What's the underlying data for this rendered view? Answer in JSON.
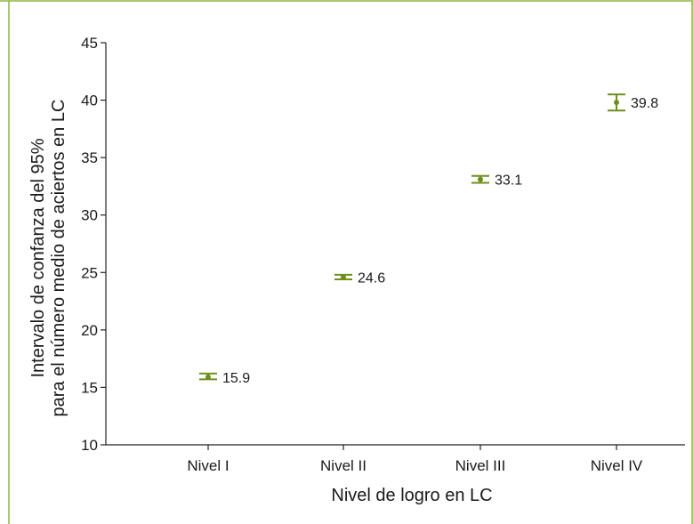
{
  "colors": {
    "frame": "#8db53c",
    "series": "#6e8f1c",
    "axis": "#222222"
  },
  "chart_data": {
    "type": "scatter",
    "subtype": "error-bar",
    "title": "",
    "xlabel": "Nivel de logro en LC",
    "ylabel_line1": "Intervalo de confanza del 95%",
    "ylabel_line2": "para el número medio de aciertos en LC",
    "categories": [
      "Nivel I",
      "Nivel II",
      "Nivel III",
      "Nivel IV"
    ],
    "ylim": [
      10,
      45
    ],
    "yticks": [
      "10",
      "15",
      "20",
      "25",
      "30",
      "35",
      "40",
      "45"
    ],
    "grid": false,
    "series": [
      {
        "values": [
          15.9,
          24.6,
          33.1,
          39.8
        ],
        "lower": [
          15.7,
          24.4,
          32.8,
          39.1
        ],
        "upper": [
          16.2,
          24.8,
          33.4,
          40.5
        ],
        "labels": [
          "15.9",
          "24.6",
          "33.1",
          "39.8"
        ]
      }
    ]
  }
}
